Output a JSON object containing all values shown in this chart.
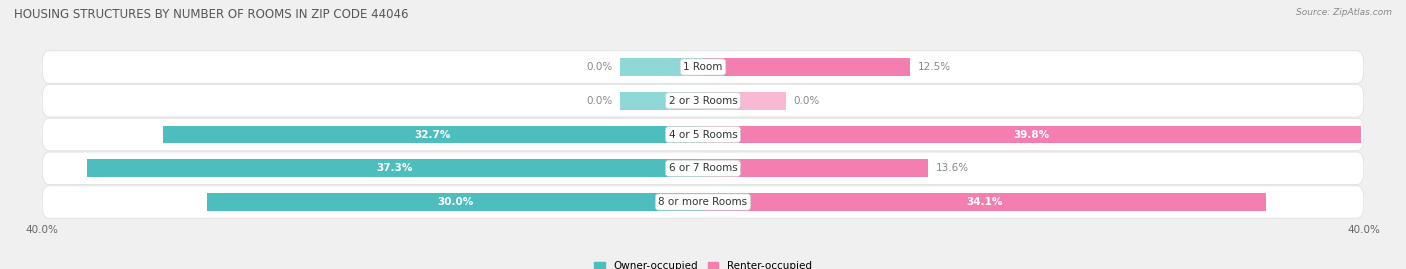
{
  "title": "HOUSING STRUCTURES BY NUMBER OF ROOMS IN ZIP CODE 44046",
  "source": "Source: ZipAtlas.com",
  "categories": [
    "1 Room",
    "2 or 3 Rooms",
    "4 or 5 Rooms",
    "6 or 7 Rooms",
    "8 or more Rooms"
  ],
  "owner_values": [
    0.0,
    0.0,
    32.7,
    37.3,
    30.0
  ],
  "renter_values": [
    12.5,
    0.0,
    39.8,
    13.6,
    34.1
  ],
  "owner_color": "#4dbdbd",
  "renter_color": "#f47eb0",
  "owner_color_light": "#90d8d8",
  "renter_color_light": "#f9b8d3",
  "xlim": 40.0,
  "legend_owner": "Owner-occupied",
  "legend_renter": "Renter-occupied",
  "title_fontsize": 8.5,
  "label_fontsize": 7.5,
  "cat_fontsize": 7.5,
  "bar_height": 0.52,
  "small_bar_val": 5.0,
  "row_colors": [
    "#f2f2f2",
    "#f9f9f9",
    "#f2f2f2",
    "#f9f9f9",
    "#f2f2f2"
  ]
}
